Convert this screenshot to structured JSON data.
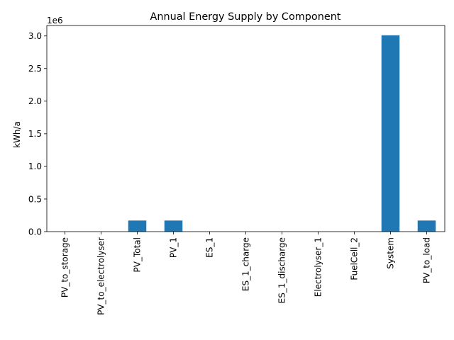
{
  "chart_data": {
    "type": "bar",
    "title": "Annual Energy Supply by Component",
    "xlabel": "",
    "ylabel": "kWh/a",
    "offset_label": "1e6",
    "categories": [
      "PV_to_storage",
      "PV_to_electrolyser",
      "PV_Total",
      "PV_1",
      "ES_1",
      "ES_1_charge",
      "ES_1_discharge",
      "Electrolyser_1",
      "FuelCell_2",
      "System",
      "PV_to_load"
    ],
    "values": [
      0,
      0,
      0.17,
      0.17,
      0,
      0,
      0,
      0,
      0,
      3.01,
      0.17
    ],
    "value_scale": 1000000,
    "ylim": [
      0,
      3.16
    ],
    "yticks": [
      0.0,
      0.5,
      1.0,
      1.5,
      2.0,
      2.5,
      3.0
    ],
    "ytick_labels": [
      "0.0",
      "0.5",
      "1.0",
      "1.5",
      "2.0",
      "2.5",
      "3.0"
    ],
    "grid": false,
    "legend": "none",
    "bar_color": "#1f77b4"
  }
}
